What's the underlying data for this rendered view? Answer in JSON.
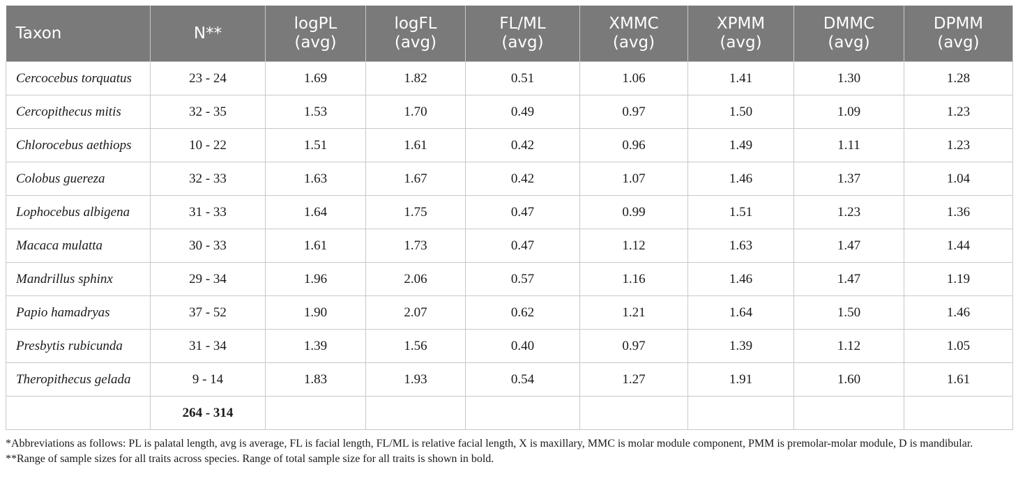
{
  "table": {
    "headers": [
      {
        "line1": "Taxon",
        "line2": ""
      },
      {
        "line1": "N**",
        "line2": ""
      },
      {
        "line1": "logPL",
        "line2": "(avg)"
      },
      {
        "line1": "logFL",
        "line2": "(avg)"
      },
      {
        "line1": "FL/ML",
        "line2": "(avg)"
      },
      {
        "line1": "XMMC",
        "line2": "(avg)"
      },
      {
        "line1": "XPMM",
        "line2": "(avg)"
      },
      {
        "line1": "DMMC",
        "line2": "(avg)"
      },
      {
        "line1": "DPMM",
        "line2": "(avg)"
      }
    ],
    "rows": [
      {
        "taxon": "Cercocebus torquatus",
        "n": "23 - 24",
        "logPL": "1.69",
        "logFL": "1.82",
        "flml": "0.51",
        "xmmc": "1.06",
        "xpmm": "1.41",
        "dmmc": "1.30",
        "dpmm": "1.28"
      },
      {
        "taxon": "Cercopithecus mitis",
        "n": "32 - 35",
        "logPL": "1.53",
        "logFL": "1.70",
        "flml": "0.49",
        "xmmc": "0.97",
        "xpmm": "1.50",
        "dmmc": "1.09",
        "dpmm": "1.23"
      },
      {
        "taxon": "Chlorocebus aethiops",
        "n": "10 - 22",
        "logPL": "1.51",
        "logFL": "1.61",
        "flml": "0.42",
        "xmmc": "0.96",
        "xpmm": "1.49",
        "dmmc": "1.11",
        "dpmm": "1.23"
      },
      {
        "taxon": "Colobus guereza",
        "n": "32 - 33",
        "logPL": "1.63",
        "logFL": "1.67",
        "flml": "0.42",
        "xmmc": "1.07",
        "xpmm": "1.46",
        "dmmc": "1.37",
        "dpmm": "1.04"
      },
      {
        "taxon": "Lophocebus albigena",
        "n": "31 - 33",
        "logPL": "1.64",
        "logFL": "1.75",
        "flml": "0.47",
        "xmmc": "0.99",
        "xpmm": "1.51",
        "dmmc": "1.23",
        "dpmm": "1.36"
      },
      {
        "taxon": "Macaca mulatta",
        "n": "30 - 33",
        "logPL": "1.61",
        "logFL": "1.73",
        "flml": "0.47",
        "xmmc": "1.12",
        "xpmm": "1.63",
        "dmmc": "1.47",
        "dpmm": "1.44"
      },
      {
        "taxon": "Mandrillus sphinx",
        "n": "29 - 34",
        "logPL": "1.96",
        "logFL": "2.06",
        "flml": "0.57",
        "xmmc": "1.16",
        "xpmm": "1.46",
        "dmmc": "1.47",
        "dpmm": "1.19"
      },
      {
        "taxon": "Papio hamadryas",
        "n": "37 - 52",
        "logPL": "1.90",
        "logFL": "2.07",
        "flml": "0.62",
        "xmmc": "1.21",
        "xpmm": "1.64",
        "dmmc": "1.50",
        "dpmm": "1.46"
      },
      {
        "taxon": "Presbytis rubicunda",
        "n": "31 - 34",
        "logPL": "1.39",
        "logFL": "1.56",
        "flml": "0.40",
        "xmmc": "0.97",
        "xpmm": "1.39",
        "dmmc": "1.12",
        "dpmm": "1.05"
      },
      {
        "taxon": "Theropithecus gelada",
        "n": "9 - 14",
        "logPL": "1.83",
        "logFL": "1.93",
        "flml": "0.54",
        "xmmc": "1.27",
        "xpmm": "1.91",
        "dmmc": "1.60",
        "dpmm": "1.61"
      }
    ],
    "total_n": "264 - 314"
  },
  "footnotes": [
    "*Abbreviations as follows: PL is palatal length, avg is average, FL is facial length, FL/ML is relative facial length, X is maxillary, MMC is molar module component, PMM is premolar-molar module, D is mandibular.",
    "**Range of sample sizes for all traits across species. Range of total sample size for all traits is shown in bold."
  ],
  "colors": {
    "header_bg": "#7a7a7a",
    "header_text": "#ffffff",
    "grid": "#c8c8c8"
  }
}
